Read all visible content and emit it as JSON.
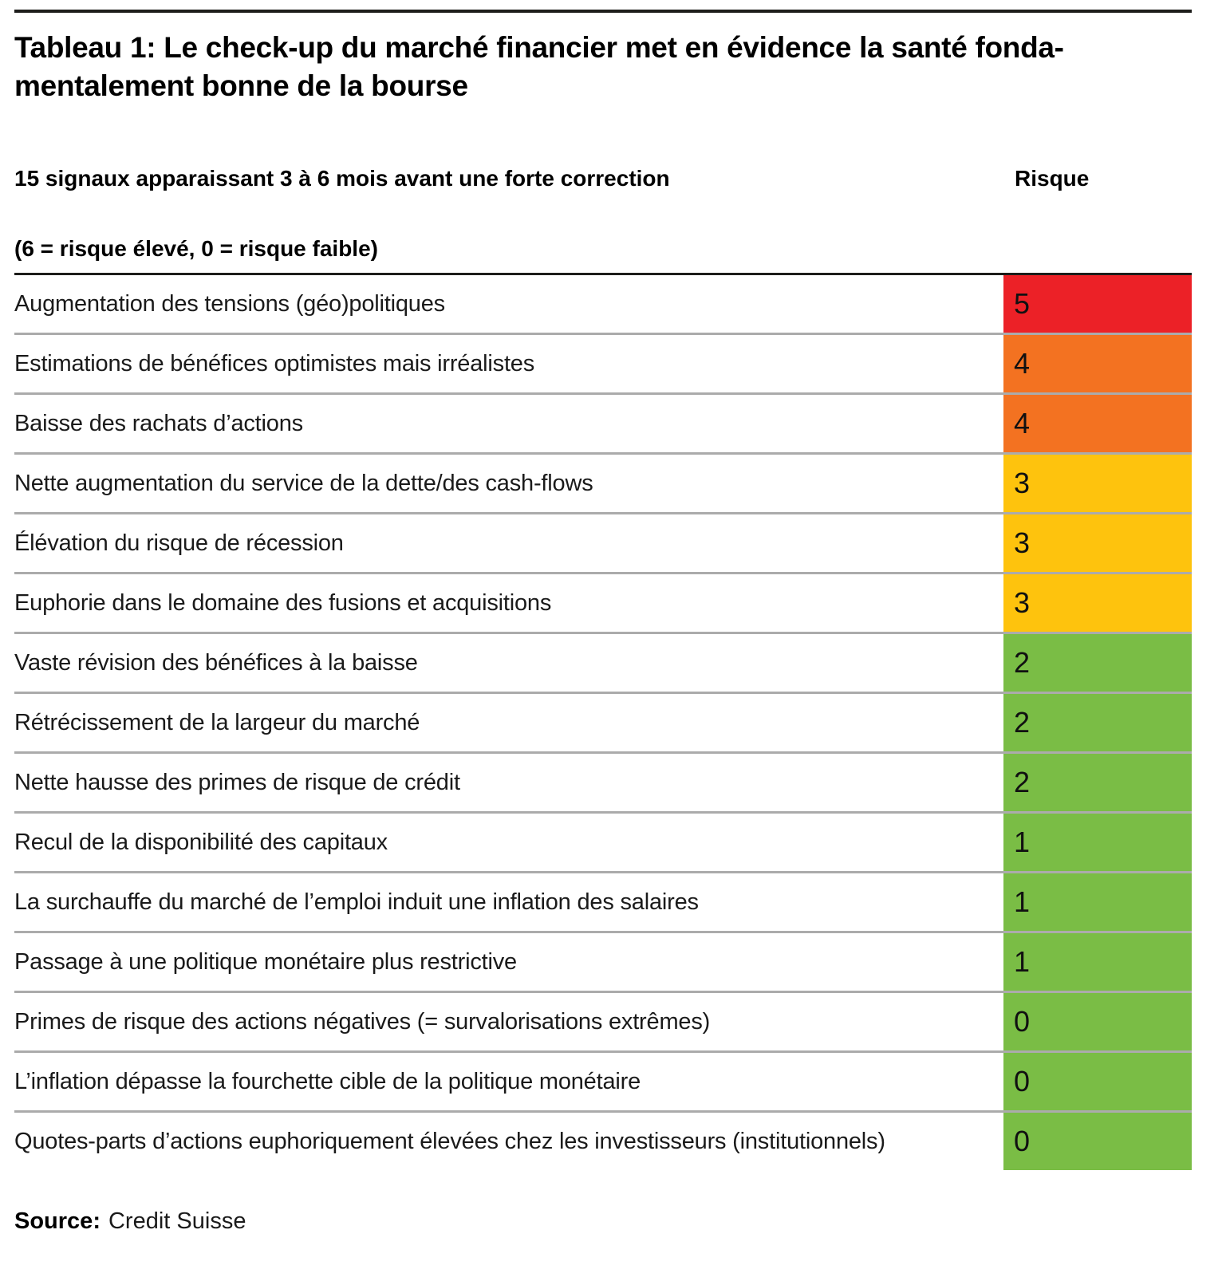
{
  "title": {
    "line1": "Tableau 1: Le check-up du marché financier met en évidence la santé fonda-",
    "line2": "mentalement bonne de la bourse"
  },
  "columns": {
    "signals_header": "15 signaux apparaissant 3 à 6 mois avant une forte correction",
    "risk_header": "Risque",
    "scale_note": "(6 = risque élevé, 0 = risque faible)"
  },
  "rows": [
    {
      "label": "Augmentation des tensions (géo)politiques",
      "value": "5",
      "color": "#EC2127"
    },
    {
      "label": "Estimations de bénéfices optimistes mais irréalistes",
      "value": "4",
      "color": "#F37221"
    },
    {
      "label": "Baisse des rachats d’actions",
      "value": "4",
      "color": "#F37221"
    },
    {
      "label": "Nette augmentation du service de la dette/des cash-flows",
      "value": "3",
      "color": "#FEC30D"
    },
    {
      "label": "Élévation du risque de récession",
      "value": "3",
      "color": "#FEC30D"
    },
    {
      "label": "Euphorie dans le domaine des fusions et acquisitions",
      "value": "3",
      "color": "#FEC30D"
    },
    {
      "label": "Vaste révision des bénéfices à la baisse",
      "value": "2",
      "color": "#7ABD45"
    },
    {
      "label": "Rétrécissement de la largeur du marché",
      "value": "2",
      "color": "#7ABD45"
    },
    {
      "label": "Nette hausse des primes de risque de crédit",
      "value": "2",
      "color": "#7ABD45"
    },
    {
      "label": "Recul de la disponibilité des capitaux",
      "value": "1",
      "color": "#7ABD45"
    },
    {
      "label": "La surchauffe du marché de l’emploi induit une inflation des salaires",
      "value": "1",
      "color": "#7ABD45"
    },
    {
      "label": "Passage à une politique monétaire plus restrictive",
      "value": "1",
      "color": "#7ABD45"
    },
    {
      "label": "Primes de risque des actions négatives (= survalorisations extrêmes)",
      "value": "0",
      "color": "#7ABD45"
    },
    {
      "label": "L’inflation dépasse la fourchette cible de la politique monétaire",
      "value": "0",
      "color": "#7ABD45"
    },
    {
      "label": "Quotes-parts d’actions euphoriquement élevées chez les investisseurs (institutionnels)",
      "value": "0",
      "color": "#7ABD45"
    }
  ],
  "source": {
    "label": "Source:",
    "value": "Credit Suisse"
  },
  "colors": {
    "risk_5": "#EC2127",
    "risk_4": "#F37221",
    "risk_3": "#FEC30D",
    "risk_low": "#7ABD45",
    "separator": "#ABABAB",
    "rule": "#1D1D1B"
  },
  "chart_data": {
    "type": "table",
    "title": "Tableau 1: Le check-up du marché financier met en évidence la santé fondamentalement bonne de la bourse",
    "columns": [
      "15 signaux apparaissant 3 à 6 mois avant une forte correction",
      "Risque"
    ],
    "scale": "6 = risque élevé, 0 = risque faible",
    "categories": [
      "Augmentation des tensions (géo)politiques",
      "Estimations de bénéfices optimistes mais irréalistes",
      "Baisse des rachats d’actions",
      "Nette augmentation du service de la dette/des cash-flows",
      "Élévation du risque de récession",
      "Euphorie dans le domaine des fusions et acquisitions",
      "Vaste révision des bénéfices à la baisse",
      "Rétrécissement de la largeur du marché",
      "Nette hausse des primes de risque de crédit",
      "Recul de la disponibilité des capitaux",
      "La surchauffe du marché de l’emploi induit une inflation des salaires",
      "Passage à une politique monétaire plus restrictive",
      "Primes de risque des actions négatives (= survalorisations extrêmes)",
      "L’inflation dépasse la fourchette cible de la politique monétaire",
      "Quotes-parts d’actions euphoriquement élevées chez les investisseurs (institutionnels)"
    ],
    "values": [
      5,
      4,
      4,
      3,
      3,
      3,
      2,
      2,
      2,
      1,
      1,
      1,
      0,
      0,
      0
    ],
    "value_range": [
      0,
      6
    ],
    "value_colors": {
      "5": "#EC2127",
      "4": "#F37221",
      "3": "#FEC30D",
      "2": "#7ABD45",
      "1": "#7ABD45",
      "0": "#7ABD45"
    },
    "source": "Credit Suisse"
  }
}
